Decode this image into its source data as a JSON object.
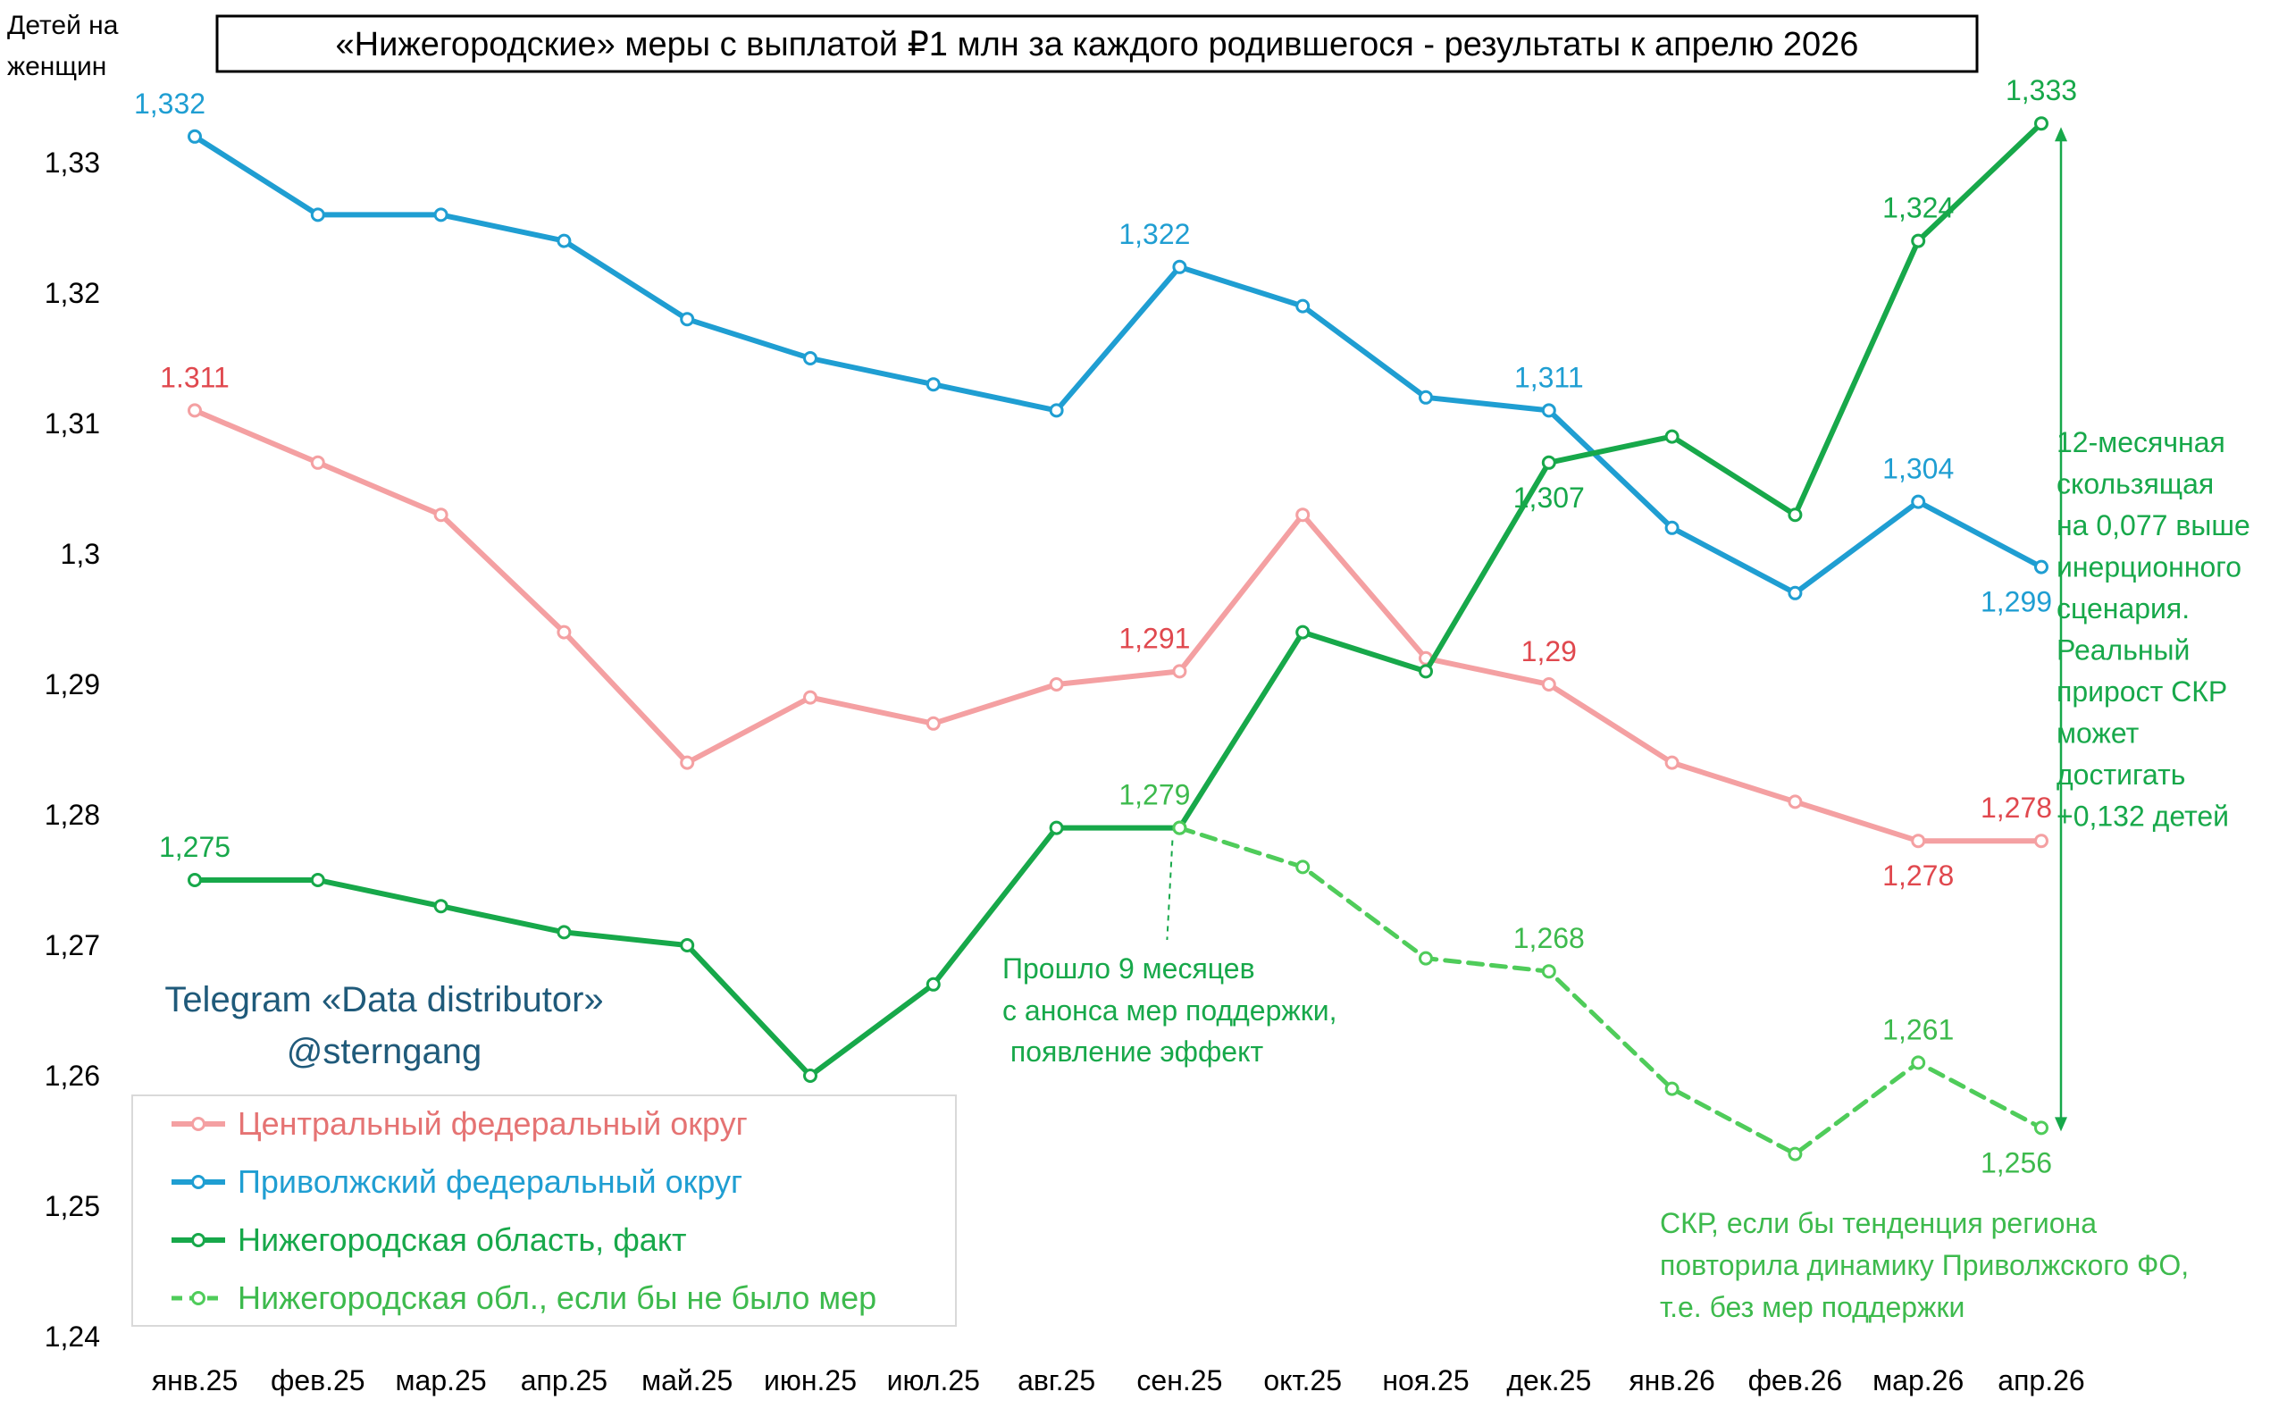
{
  "chart_data": {
    "type": "line",
    "title": "«Нижегородские» меры с выплатой  ₽1 млн за каждого родившегося - результаты к апрелю 2026",
    "ylabel_lines": [
      "Детей на",
      "женщин"
    ],
    "ylim": [
      1.24,
      1.34
    ],
    "yticks": [
      1.24,
      1.25,
      1.26,
      1.27,
      1.28,
      1.29,
      1.3,
      1.31,
      1.32,
      1.33
    ],
    "ytick_labels": [
      "1,24",
      "1,25",
      "1,26",
      "1,27",
      "1,28",
      "1,29",
      "1,3",
      "1,31",
      "1,32",
      "1,33"
    ],
    "categories": [
      "янв.25",
      "фев.25",
      "мар.25",
      "апр.25",
      "май.25",
      "июн.25",
      "июл.25",
      "авг.25",
      "сен.25",
      "окт.25",
      "ноя.25",
      "дек.25",
      "янв.26",
      "фев.26",
      "мар.26",
      "апр.26"
    ],
    "grid": false,
    "legend_position": "bottom-left",
    "series": [
      {
        "name": "Центральный федеральный округ",
        "color": "#f4a0a2",
        "label_color": "#e0484e",
        "dashed": false,
        "values": [
          1.311,
          1.307,
          1.303,
          1.294,
          1.284,
          1.289,
          1.287,
          1.29,
          1.291,
          1.303,
          1.292,
          1.29,
          1.284,
          1.281,
          1.278,
          1.278
        ],
        "data_labels": [
          {
            "index": 0,
            "text": "1.311",
            "pos": "above"
          },
          {
            "index": 8,
            "text": "1,291",
            "pos": "above-left"
          },
          {
            "index": 11,
            "text": "1,29",
            "pos": "above"
          },
          {
            "index": 14,
            "text": "1,278",
            "pos": "below"
          },
          {
            "index": 15,
            "text": "1,278",
            "pos": "above-left"
          }
        ]
      },
      {
        "name": "Приволжский федеральный округ",
        "color": "#1f9ed2",
        "label_color": "#1f9ed2",
        "dashed": false,
        "values": [
          1.332,
          1.326,
          1.326,
          1.324,
          1.318,
          1.315,
          1.313,
          1.311,
          1.322,
          1.319,
          1.312,
          1.311,
          1.302,
          1.297,
          1.304,
          1.299
        ],
        "data_labels": [
          {
            "index": 0,
            "text": "1,332",
            "pos": "above-left"
          },
          {
            "index": 8,
            "text": "1,322",
            "pos": "above-left"
          },
          {
            "index": 11,
            "text": "1,311",
            "pos": "above"
          },
          {
            "index": 14,
            "text": "1,304",
            "pos": "above"
          },
          {
            "index": 15,
            "text": "1,299",
            "pos": "below-left"
          }
        ]
      },
      {
        "name": "Нижегородская область, факт",
        "color": "#17a84a",
        "label_color": "#17a84a",
        "dashed": false,
        "values": [
          1.275,
          1.275,
          1.273,
          1.271,
          1.27,
          1.26,
          1.267,
          1.279,
          1.279,
          1.294,
          1.291,
          1.307,
          1.309,
          1.303,
          1.324,
          1.333
        ],
        "data_labels": [
          {
            "index": 0,
            "text": "1,275",
            "pos": "above"
          },
          {
            "index": 11,
            "text": "1,307",
            "pos": "below"
          },
          {
            "index": 14,
            "text": "1,324",
            "pos": "above"
          },
          {
            "index": 15,
            "text": "1,333",
            "pos": "above"
          }
        ]
      },
      {
        "name": "Нижегородская обл., если бы не было мер",
        "color": "#4fcc5a",
        "label_color": "#3dba4d",
        "dashed": true,
        "values": [
          null,
          null,
          null,
          null,
          null,
          null,
          null,
          null,
          1.279,
          1.276,
          1.269,
          1.268,
          1.259,
          1.254,
          1.261,
          1.256
        ],
        "data_labels": [
          {
            "index": 8,
            "text": "1,279",
            "pos": "above-left"
          },
          {
            "index": 11,
            "text": "1,268",
            "pos": "above"
          },
          {
            "index": 14,
            "text": "1,261",
            "pos": "above"
          },
          {
            "index": 15,
            "text": "1,256",
            "pos": "below-left"
          }
        ]
      }
    ],
    "annotations": {
      "watermark": [
        "Telegram «Data distributor»",
        "@sterngang"
      ],
      "announcement_note": [
        "Прошло 9 месяцев",
        "с анонса мер поддержки,",
        " появление эффект"
      ],
      "gap_note": [
        "12-месячная",
        "скользящая",
        "на 0,077 выше",
        "инерционного",
        "сценария.",
        "Реальный",
        "прирост СКР",
        "может",
        "достигать",
        "+0,132 детей"
      ],
      "counterfactual_note": [
        "СКР, если бы тенденция региона",
        "повторила динамику Приволжского ФО,",
        "т.е. без мер поддержки"
      ],
      "dark_green": "#17a84a",
      "light_green": "#3dba4d",
      "watermark_color": "#1f5a7a"
    }
  }
}
